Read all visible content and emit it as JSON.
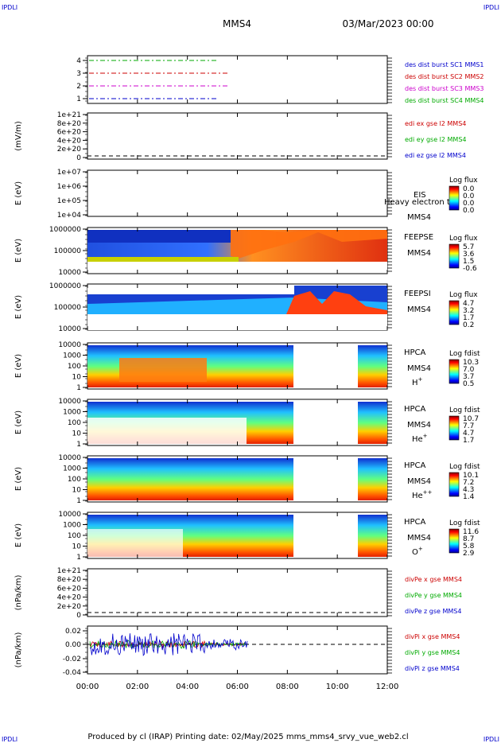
{
  "header": {
    "corner_left": "IPDLI",
    "corner_right": "IPDLI",
    "title": "MMS4",
    "date": "03/Mar/2023 00:00"
  },
  "footer": {
    "text": "Produced by cl (IRAP)    Printing date: 02/May/2025    mms_mms4_srvy_vue_web2.cl",
    "corner_left": "IPDLI",
    "corner_right": "IPDLI"
  },
  "colors": {
    "mms1": "#0000cc",
    "mms2": "#cc0000",
    "mms3": "#cc00cc",
    "mms4": "#00aa00",
    "x": "#cc0000",
    "y": "#00aa00",
    "z": "#0000cc"
  },
  "chart_data": [
    {
      "type": "line",
      "panel": "burst",
      "yticks": [
        "1",
        "2",
        "3",
        "4"
      ],
      "legend": [
        {
          "label": "des dist burst SC1 MMS1",
          "color": "mms1"
        },
        {
          "label": "des dist burst SC2 MMS2",
          "color": "mms2"
        },
        {
          "label": "des dist burst SC3 MMS3",
          "color": "mms3"
        },
        {
          "label": "des dist burst SC4 MMS4",
          "color": "mms4"
        }
      ]
    },
    {
      "type": "line",
      "panel": "edi",
      "ylabel": "(mV/m)",
      "yticks": [
        "0",
        "2e+20",
        "4e+20",
        "6e+20",
        "8e+20",
        "1e+21"
      ],
      "legend": [
        {
          "label": "edi ex gse l2 MMS4",
          "color": "x"
        },
        {
          "label": "edi ey gse l2 MMS4",
          "color": "y"
        },
        {
          "label": "edi ez gse l2 MMS4",
          "color": "z"
        }
      ]
    },
    {
      "type": "heatmap",
      "panel": "eis",
      "ylabel": "E (eV)",
      "yticks": [
        "1e+04",
        "1e+05",
        "1e+06",
        "1e+07"
      ],
      "instrument": "EIS",
      "sc": "MMS4",
      "overlay": "Heavy electron to",
      "cbar_title": "Log flux",
      "cbar_ticks": [
        "0.0",
        "0.0",
        "0.0",
        "0.0"
      ]
    },
    {
      "type": "heatmap",
      "panel": "feepse",
      "ylabel": "E (eV)",
      "yticks": [
        "10000",
        "100000",
        "1000000"
      ],
      "instrument": "FEEPSE",
      "sc": "MMS4",
      "cbar_title": "Log flux",
      "cbar_ticks": [
        "5.7",
        "3.6",
        "1.5",
        "-0.6"
      ]
    },
    {
      "type": "heatmap",
      "panel": "feepsi",
      "ylabel": "E (eV)",
      "yticks": [
        "10000",
        "100000",
        "1000000"
      ],
      "instrument": "FEEPSI",
      "sc": "MMS4",
      "cbar_title": "Log flux",
      "cbar_ticks": [
        "4.7",
        "3.2",
        "1.7",
        "0.2"
      ]
    },
    {
      "type": "heatmap",
      "panel": "hpca_h",
      "ylabel": "E (eV)",
      "yticks": [
        "1",
        "10",
        "100",
        "1000",
        "10000"
      ],
      "instrument": "HPCA",
      "sc": "MMS4",
      "species": "H",
      "charge": "+",
      "cbar_title": "Log fdist",
      "cbar_ticks": [
        "10.3",
        "7.0",
        "3.7",
        "0.5"
      ]
    },
    {
      "type": "heatmap",
      "panel": "hpca_he",
      "ylabel": "E (eV)",
      "yticks": [
        "1",
        "10",
        "100",
        "1000",
        "10000"
      ],
      "instrument": "HPCA",
      "sc": "MMS4",
      "species": "He",
      "charge": "+",
      "cbar_title": "Log fdist",
      "cbar_ticks": [
        "10.7",
        "7.7",
        "4.7",
        "1.7"
      ]
    },
    {
      "type": "heatmap",
      "panel": "hpca_he2",
      "ylabel": "E (eV)",
      "yticks": [
        "1",
        "10",
        "100",
        "1000",
        "10000"
      ],
      "instrument": "HPCA",
      "sc": "MMS4",
      "species": "He",
      "charge": "++",
      "cbar_title": "Log fdist",
      "cbar_ticks": [
        "10.1",
        "7.2",
        "4.3",
        "1.4"
      ]
    },
    {
      "type": "heatmap",
      "panel": "hpca_o",
      "ylabel": "E (eV)",
      "yticks": [
        "1",
        "10",
        "100",
        "1000",
        "10000"
      ],
      "instrument": "HPCA",
      "sc": "MMS4",
      "species": "O",
      "charge": "+",
      "cbar_title": "Log fdist",
      "cbar_ticks": [
        "11.6",
        "8.7",
        "5.8",
        "2.9"
      ]
    },
    {
      "type": "line",
      "panel": "divpe",
      "ylabel": "(nPa/km)",
      "yticks": [
        "0",
        "2e+20",
        "4e+20",
        "6e+20",
        "8e+20",
        "1e+21"
      ],
      "legend": [
        {
          "label": "divPe x gse MMS4",
          "color": "x"
        },
        {
          "label": "divPe y gse MMS4",
          "color": "y"
        },
        {
          "label": "divPe z gse MMS4",
          "color": "z"
        }
      ]
    },
    {
      "type": "line",
      "panel": "divpi",
      "ylabel": "(nPa/km)",
      "yticks": [
        "-0.04",
        "-0.02",
        "0.00",
        "0.02"
      ],
      "ylim": [
        -0.04,
        0.025
      ],
      "legend": [
        {
          "label": "divPi x gse MMS4",
          "color": "x"
        },
        {
          "label": "divPi y gse MMS4",
          "color": "y"
        },
        {
          "label": "divPi z gse MMS4",
          "color": "z"
        }
      ]
    }
  ],
  "xaxis": {
    "ticks": [
      "00:00",
      "02:00",
      "04:00",
      "06:00",
      "08:00",
      "10:00",
      "12:00"
    ],
    "range": [
      0,
      12
    ]
  }
}
